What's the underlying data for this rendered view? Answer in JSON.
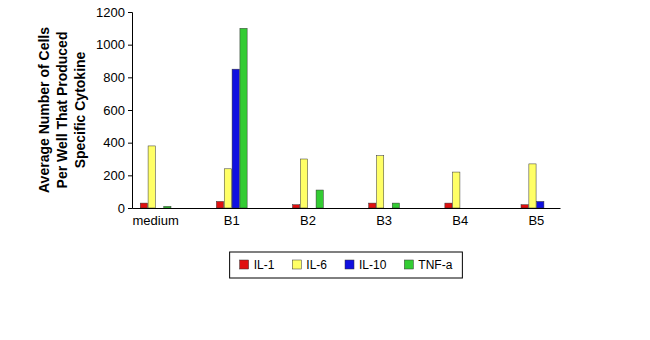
{
  "chart_data": {
    "type": "bar",
    "y_label": "Average Number of Cells Per Well That Produced Specific Cytokine",
    "categories": [
      "medium",
      "B1",
      "B2",
      "B3",
      "B4",
      "B5"
    ],
    "series": [
      {
        "name": "IL-1",
        "color": "#e01010",
        "values": [
          30,
          40,
          20,
          30,
          30,
          20
        ]
      },
      {
        "name": "IL-6",
        "color": "#ffff66",
        "values": [
          380,
          240,
          300,
          320,
          220,
          270
        ]
      },
      {
        "name": "IL-10",
        "color": "#1010e0",
        "values": [
          0,
          850,
          0,
          0,
          0,
          40
        ]
      },
      {
        "name": "TNF-a",
        "color": "#33cc33",
        "values": [
          10,
          1100,
          110,
          30,
          0,
          0
        ]
      }
    ],
    "ylim": [
      0,
      1200
    ],
    "yticks": [
      0,
      200,
      400,
      600,
      800,
      1000,
      1200
    ],
    "grid": false,
    "legend": "bottom"
  }
}
